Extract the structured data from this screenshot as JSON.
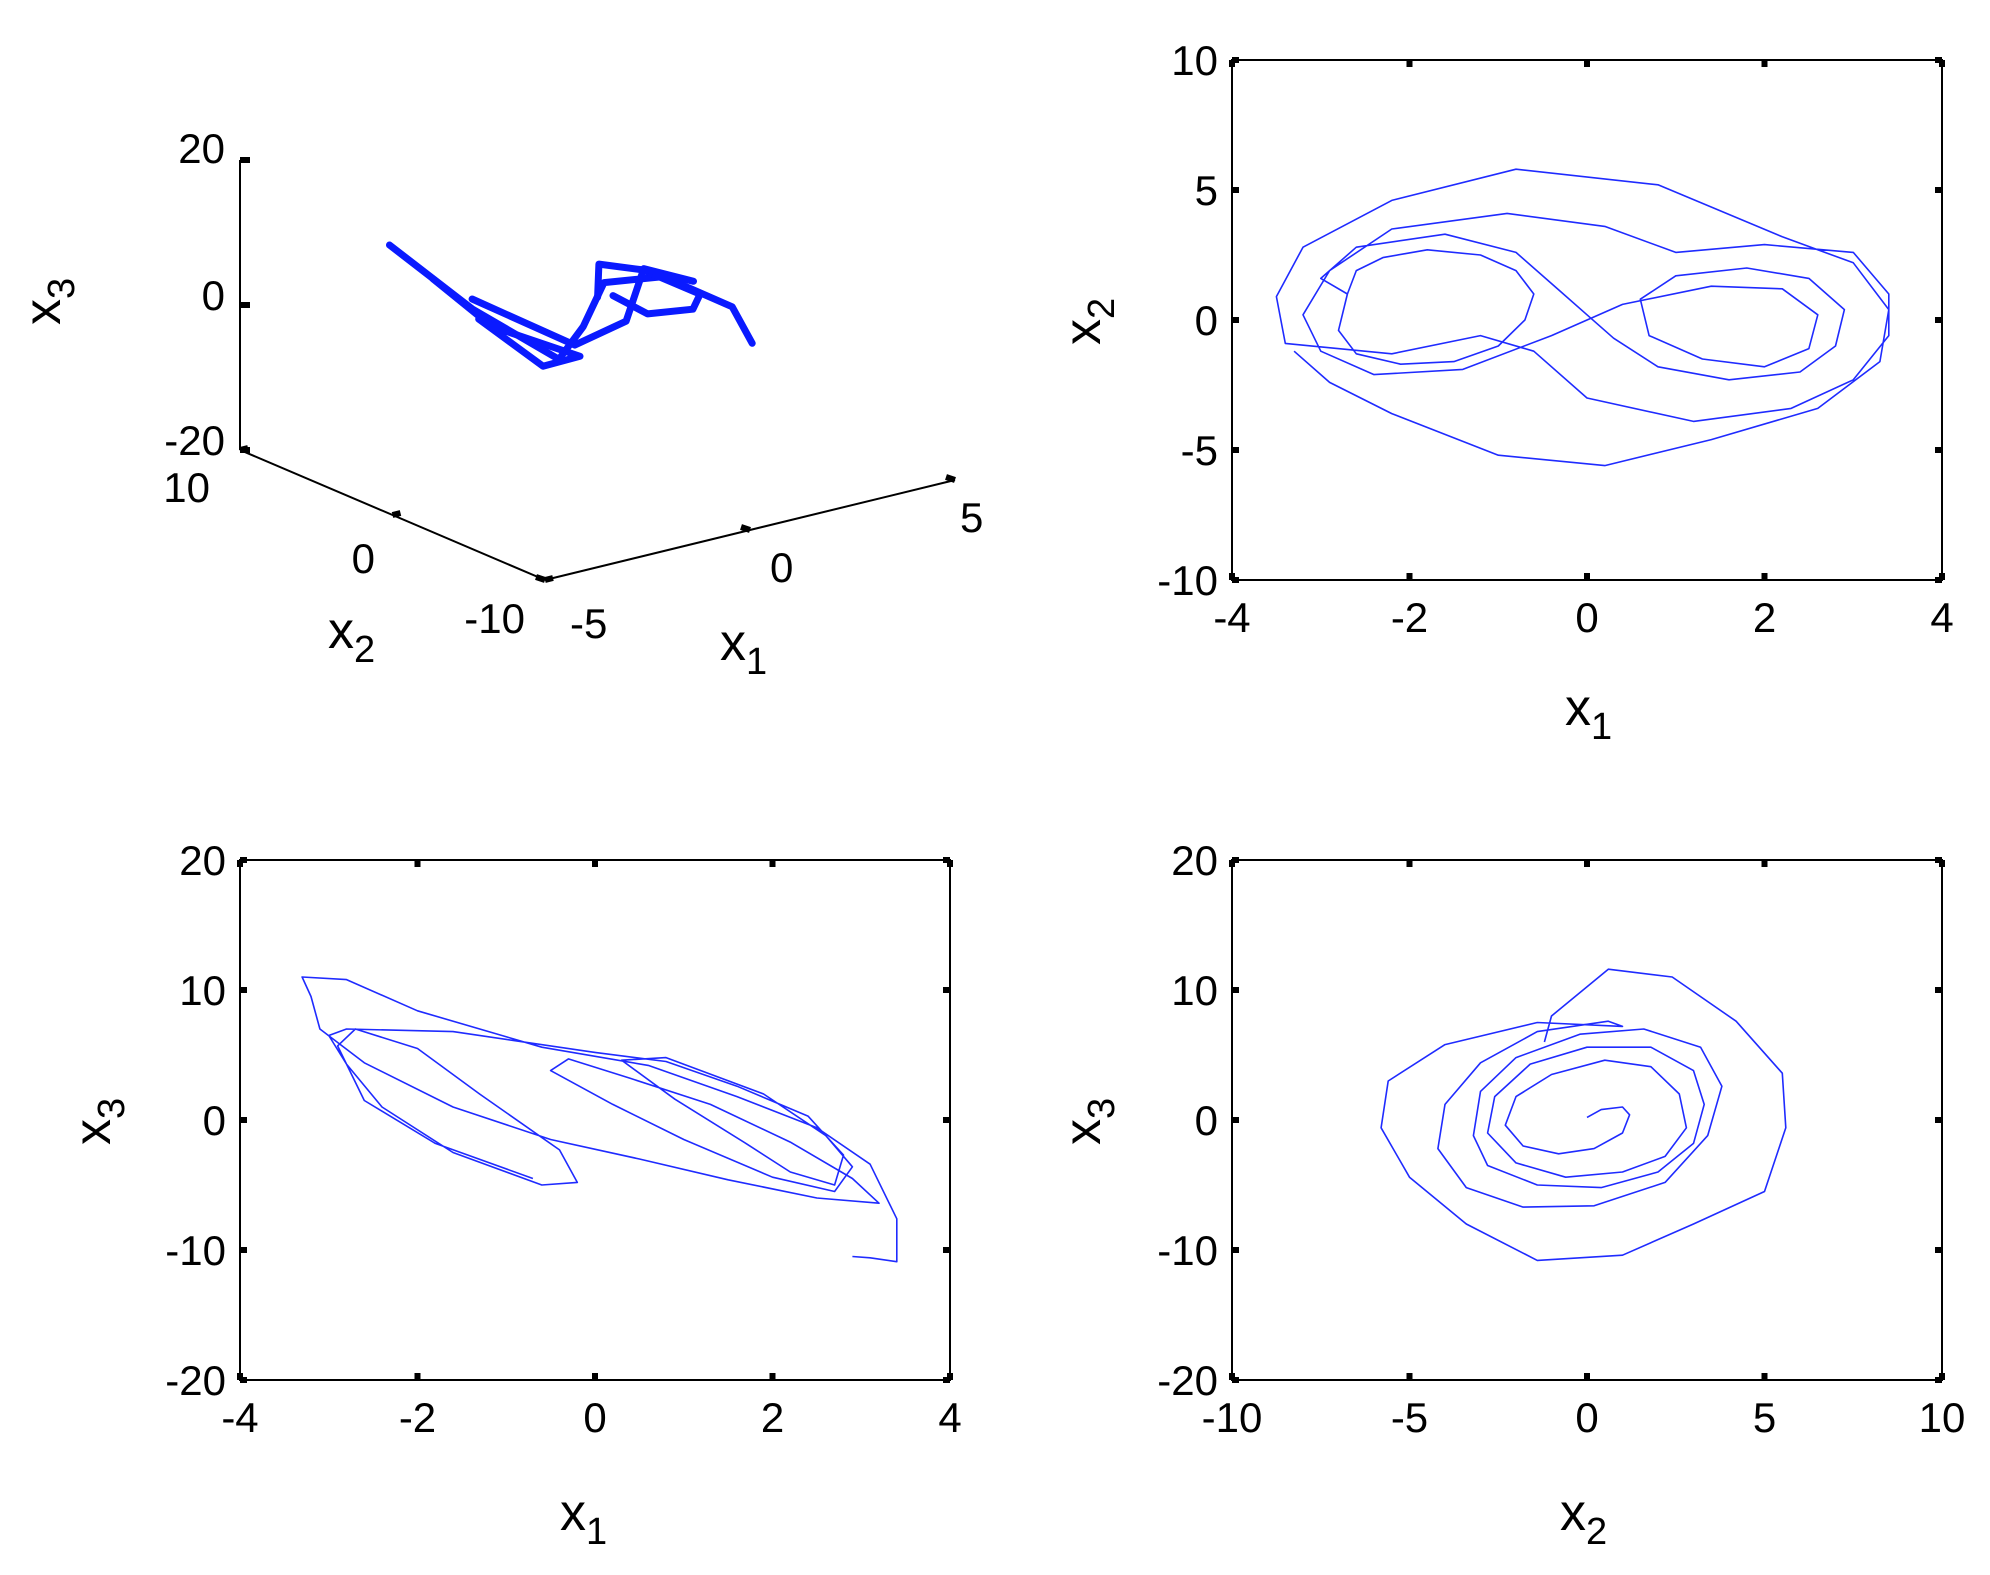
{
  "chart_data": [
    {
      "id": "p3d",
      "type": "line3d",
      "axes": {
        "x1": {
          "label": "x",
          "sub": "1",
          "ticks": [
            -5,
            0,
            5
          ]
        },
        "x2": {
          "label": "x",
          "sub": "2",
          "ticks": [
            -10,
            0,
            10
          ]
        },
        "x3": {
          "label": "x",
          "sub": "3",
          "ticks": [
            -20,
            0,
            20
          ]
        }
      },
      "series": [
        {
          "color": "#0a1aff",
          "points": [
            [
              -3.4,
              4.5,
              11
            ],
            [
              -2.6,
              1.2,
              4
            ],
            [
              -1.5,
              -1.5,
              -2
            ],
            [
              -0.2,
              0.4,
              -1
            ],
            [
              1.2,
              2.8,
              1
            ],
            [
              2.2,
              1.6,
              1.5
            ],
            [
              3.1,
              -0.5,
              -2
            ],
            [
              3.4,
              -1.0,
              -7
            ]
          ]
        },
        {
          "color": "#0a1aff",
          "points": [
            [
              -2.9,
              3.0,
              7
            ],
            [
              -2.4,
              0.5,
              2
            ],
            [
              -0.8,
              -1.0,
              -3
            ],
            [
              -2.0,
              -1.8,
              -2
            ],
            [
              -2.6,
              0.8,
              3
            ]
          ]
        },
        {
          "color": "#0a1aff",
          "points": [
            [
              0.3,
              0.8,
              2
            ],
            [
              1.0,
              2.6,
              4
            ],
            [
              2.0,
              2.4,
              2
            ],
            [
              2.8,
              0.8,
              -1
            ],
            [
              2.4,
              0.2,
              -2
            ],
            [
              1.0,
              -0.6,
              0
            ],
            [
              0.6,
              0.6,
              2
            ]
          ]
        },
        {
          "color": "#0a1aff",
          "points": [
            [
              -2.5,
              1.5,
              5
            ],
            [
              -1.0,
              -1.2,
              -1
            ],
            [
              0.4,
              -0.8,
              0
            ],
            [
              1.8,
              1.8,
              3
            ],
            [
              2.9,
              1.5,
              0
            ]
          ]
        }
      ]
    },
    {
      "id": "p12",
      "type": "line",
      "xlabel": {
        "label": "x",
        "sub": "1"
      },
      "ylabel": {
        "label": "x",
        "sub": "2"
      },
      "xlim": [
        -4,
        4
      ],
      "ylim": [
        -10,
        10
      ],
      "xticks": [
        -4,
        -2,
        0,
        2,
        4
      ],
      "yticks": [
        -10,
        -5,
        0,
        5,
        10
      ],
      "series": [
        {
          "color": "#1f2bff",
          "points": [
            [
              -2.7,
              1.0
            ],
            [
              -2.6,
              1.9
            ],
            [
              -2.3,
              2.4
            ],
            [
              -1.8,
              2.7
            ],
            [
              -1.2,
              2.5
            ],
            [
              -0.8,
              1.9
            ],
            [
              -0.6,
              1.0
            ],
            [
              -0.7,
              0
            ],
            [
              -1.0,
              -1.0
            ],
            [
              -1.5,
              -1.6
            ],
            [
              -2.1,
              -1.7
            ],
            [
              -2.6,
              -1.3
            ],
            [
              -2.8,
              -0.4
            ],
            [
              -2.7,
              1.0
            ],
            [
              -3.0,
              1.6
            ],
            [
              -2.6,
              2.8
            ],
            [
              -1.6,
              3.3
            ],
            [
              -0.8,
              2.6
            ],
            [
              -0.3,
              1.1
            ],
            [
              0,
              0.2
            ],
            [
              0.3,
              -0.7
            ],
            [
              0.8,
              -1.8
            ],
            [
              1.6,
              -2.3
            ],
            [
              2.4,
              -2.0
            ],
            [
              2.8,
              -1.0
            ],
            [
              2.9,
              0.4
            ],
            [
              2.5,
              1.6
            ],
            [
              1.8,
              2.0
            ],
            [
              1.0,
              1.7
            ],
            [
              0.6,
              0.8
            ],
            [
              0.7,
              -0.6
            ],
            [
              1.3,
              -1.5
            ],
            [
              2.0,
              -1.8
            ],
            [
              2.5,
              -1.1
            ],
            [
              2.6,
              0.2
            ],
            [
              2.2,
              1.2
            ],
            [
              1.4,
              1.3
            ],
            [
              0.4,
              0.6
            ],
            [
              0,
              0
            ],
            [
              -0.4,
              -0.6
            ],
            [
              -1.4,
              -1.9
            ],
            [
              -2.4,
              -2.1
            ],
            [
              -3.0,
              -1.2
            ],
            [
              -3.2,
              0.2
            ],
            [
              -2.9,
              1.9
            ],
            [
              -2.2,
              3.5
            ],
            [
              -0.9,
              4.1
            ],
            [
              0.2,
              3.6
            ],
            [
              1.0,
              2.6
            ],
            [
              2.0,
              2.9
            ],
            [
              3.0,
              2.6
            ],
            [
              3.4,
              1.0
            ],
            [
              3.4,
              -0.6
            ],
            [
              3.0,
              -2.3
            ],
            [
              2.3,
              -3.4
            ],
            [
              1.2,
              -3.9
            ],
            [
              0,
              -3.0
            ],
            [
              -0.6,
              -1.2
            ],
            [
              -1.2,
              -0.6
            ],
            [
              -2.2,
              -1.3
            ],
            [
              -3.4,
              -0.9
            ],
            [
              -3.5,
              0.9
            ],
            [
              -3.2,
              2.8
            ],
            [
              -2.2,
              4.6
            ],
            [
              -0.8,
              5.8
            ],
            [
              0.8,
              5.2
            ],
            [
              2.2,
              3.2
            ],
            [
              3.0,
              2.2
            ],
            [
              3.4,
              0.4
            ],
            [
              3.3,
              -1.6
            ],
            [
              2.6,
              -3.4
            ],
            [
              1.4,
              -4.6
            ],
            [
              0.2,
              -5.6
            ],
            [
              -1.0,
              -5.2
            ],
            [
              -2.2,
              -3.6
            ],
            [
              -2.9,
              -2.4
            ],
            [
              -3.3,
              -1.2
            ]
          ]
        }
      ]
    },
    {
      "id": "p13",
      "type": "line",
      "xlabel": {
        "label": "x",
        "sub": "1"
      },
      "ylabel": {
        "label": "x",
        "sub": "3"
      },
      "xlim": [
        -4,
        4
      ],
      "ylim": [
        -20,
        20
      ],
      "xticks": [
        -4,
        -2,
        0,
        2,
        4
      ],
      "yticks": [
        -20,
        -10,
        0,
        10,
        20
      ],
      "series": [
        {
          "color": "#1f2bff",
          "points": [
            [
              -0.7,
              -4.5
            ],
            [
              -1.8,
              -1.8
            ],
            [
              -2.6,
              1.5
            ],
            [
              -2.9,
              5.7
            ],
            [
              -2.7,
              7.0
            ],
            [
              -2.0,
              5.5
            ],
            [
              -1.3,
              2.0
            ],
            [
              -0.4,
              -2.3
            ],
            [
              -0.2,
              -4.8
            ],
            [
              -0.6,
              -5.0
            ],
            [
              -1.6,
              -2.5
            ],
            [
              -2.4,
              1.0
            ],
            [
              -2.8,
              4.3
            ],
            [
              -3.0,
              6.5
            ],
            [
              -2.8,
              7.0
            ],
            [
              -1.6,
              6.8
            ],
            [
              0.0,
              5.2
            ],
            [
              0.8,
              4.5
            ],
            [
              1.6,
              2.6
            ],
            [
              2.4,
              0.3
            ],
            [
              2.8,
              -2.7
            ],
            [
              2.7,
              -5.0
            ],
            [
              2.2,
              -4.0
            ],
            [
              1.7,
              -1.8
            ],
            [
              0.9,
              1.6
            ],
            [
              0.3,
              4.6
            ],
            [
              0.8,
              4.8
            ],
            [
              1.9,
              2.0
            ],
            [
              2.6,
              -1.2
            ],
            [
              2.9,
              -3.6
            ],
            [
              2.7,
              -5.5
            ],
            [
              2.0,
              -4.4
            ],
            [
              1.0,
              -1.5
            ],
            [
              0.2,
              1.2
            ],
            [
              -0.5,
              3.8
            ],
            [
              -0.3,
              4.7
            ],
            [
              0.4,
              3.2
            ],
            [
              1.3,
              1.2
            ],
            [
              2.2,
              -1.7
            ],
            [
              2.9,
              -4.5
            ],
            [
              3.2,
              -6.4
            ],
            [
              2.5,
              -6.0
            ],
            [
              1.5,
              -4.6
            ],
            [
              0.5,
              -3.0
            ],
            [
              -0.5,
              -1.5
            ],
            [
              -1.6,
              1.0
            ],
            [
              -2.6,
              4.4
            ],
            [
              -3.1,
              7.0
            ],
            [
              -3.2,
              9.5
            ],
            [
              -3.3,
              11.0
            ],
            [
              -2.8,
              10.8
            ],
            [
              -2.0,
              8.4
            ],
            [
              -0.6,
              5.6
            ],
            [
              0.6,
              4.2
            ],
            [
              1.6,
              1.8
            ],
            [
              2.5,
              -0.6
            ],
            [
              3.1,
              -3.4
            ],
            [
              3.4,
              -7.6
            ],
            [
              3.4,
              -10.9
            ],
            [
              3.1,
              -10.6
            ],
            [
              2.9,
              -10.5
            ]
          ]
        }
      ]
    },
    {
      "id": "p23",
      "type": "line",
      "xlabel": {
        "label": "x",
        "sub": "2"
      },
      "ylabel": {
        "label": "x",
        "sub": "3"
      },
      "xlim": [
        -10,
        10
      ],
      "ylim": [
        -20,
        20
      ],
      "xticks": [
        -10,
        -5,
        0,
        5,
        10
      ],
      "yticks": [
        -20,
        -10,
        0,
        10,
        20
      ],
      "series": [
        {
          "color": "#1f2bff",
          "points": [
            [
              0,
              0.2
            ],
            [
              0.4,
              0.8
            ],
            [
              1.0,
              1.0
            ],
            [
              1.2,
              0.4
            ],
            [
              1.0,
              -1.0
            ],
            [
              0.2,
              -2.2
            ],
            [
              -0.8,
              -2.6
            ],
            [
              -1.8,
              -2.0
            ],
            [
              -2.3,
              -0.4
            ],
            [
              -2.0,
              1.8
            ],
            [
              -1.0,
              3.5
            ],
            [
              0.5,
              4.6
            ],
            [
              1.8,
              4.1
            ],
            [
              2.6,
              2.0
            ],
            [
              2.8,
              -0.6
            ],
            [
              2.2,
              -2.8
            ],
            [
              1.0,
              -4.0
            ],
            [
              -0.6,
              -4.4
            ],
            [
              -2.0,
              -3.3
            ],
            [
              -2.8,
              -1.0
            ],
            [
              -2.6,
              1.8
            ],
            [
              -1.6,
              4.3
            ],
            [
              0,
              5.6
            ],
            [
              1.8,
              5.6
            ],
            [
              3.0,
              3.8
            ],
            [
              3.3,
              1.2
            ],
            [
              3.0,
              -1.8
            ],
            [
              2.0,
              -4.0
            ],
            [
              0.4,
              -5.2
            ],
            [
              -1.4,
              -5.0
            ],
            [
              -2.8,
              -3.5
            ],
            [
              -3.2,
              -1.2
            ],
            [
              -3.0,
              2.2
            ],
            [
              -2.0,
              4.8
            ],
            [
              -0.2,
              6.6
            ],
            [
              1.6,
              7.0
            ],
            [
              3.2,
              5.6
            ],
            [
              3.8,
              2.6
            ],
            [
              3.4,
              -1.2
            ],
            [
              2.2,
              -4.8
            ],
            [
              0.2,
              -6.6
            ],
            [
              -1.8,
              -6.7
            ],
            [
              -3.4,
              -5.2
            ],
            [
              -4.2,
              -2.2
            ],
            [
              -4.0,
              1.2
            ],
            [
              -3.0,
              4.4
            ],
            [
              -1.4,
              6.8
            ],
            [
              0.6,
              7.6
            ],
            [
              1.0,
              7.2
            ],
            [
              -1.4,
              7.5
            ],
            [
              -4.0,
              5.8
            ],
            [
              -5.6,
              3.0
            ],
            [
              -5.8,
              -0.6
            ],
            [
              -5.0,
              -4.4
            ],
            [
              -3.4,
              -8.0
            ],
            [
              -1.4,
              -10.8
            ],
            [
              1.0,
              -10.4
            ],
            [
              3.0,
              -8.0
            ],
            [
              5.0,
              -5.5
            ],
            [
              5.6,
              -0.6
            ],
            [
              5.5,
              3.6
            ],
            [
              4.2,
              7.6
            ],
            [
              2.4,
              11.0
            ],
            [
              0.6,
              11.6
            ],
            [
              -1.0,
              8.0
            ],
            [
              -1.2,
              6.0
            ]
          ]
        }
      ]
    }
  ]
}
